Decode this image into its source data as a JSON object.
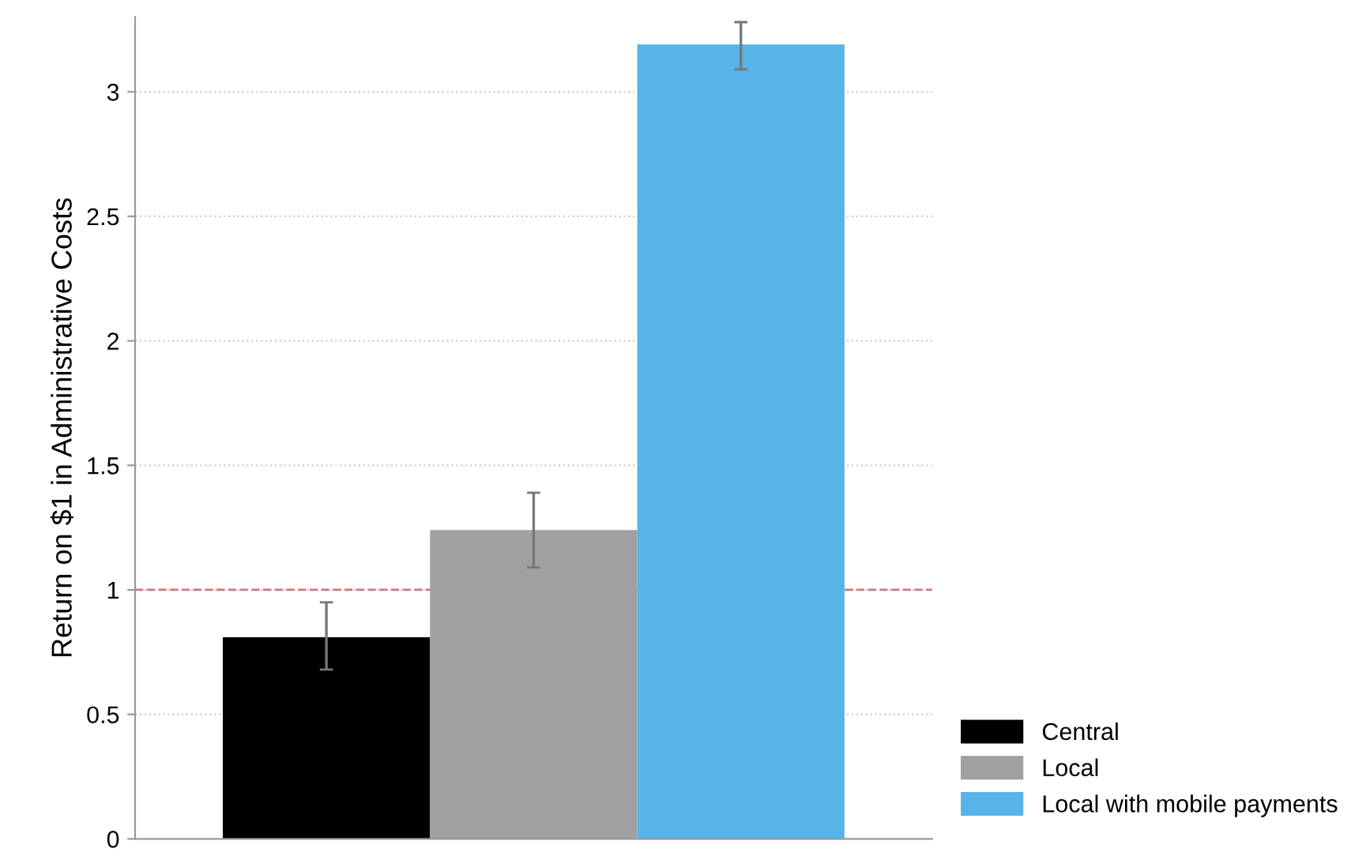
{
  "chart_data": {
    "type": "bar",
    "ylabel": "Return on $1 in Administrative Costs",
    "categories": [
      null
    ],
    "series": [
      {
        "name": "Central",
        "color": "#000000",
        "values": [
          0.81
        ],
        "errors": [
          [
            0.68,
            0.95
          ]
        ]
      },
      {
        "name": "Local",
        "color": "#a0a0a0",
        "values": [
          1.24
        ],
        "errors": [
          [
            1.09,
            1.39
          ]
        ]
      },
      {
        "name": "Local with mobile payments",
        "color": "#56b4e9",
        "values": [
          3.19
        ],
        "errors": [
          [
            3.09,
            3.28
          ]
        ]
      }
    ],
    "ylim": [
      0,
      3.3
    ],
    "yticks": [
      0,
      0.5,
      1,
      1.5,
      2,
      2.5,
      3
    ],
    "grid": "y",
    "legend": "bottom right",
    "ref_lines": [
      {
        "axis": "y",
        "value": 1,
        "color": "#c87a80",
        "line_style": "dashed"
      }
    ]
  }
}
